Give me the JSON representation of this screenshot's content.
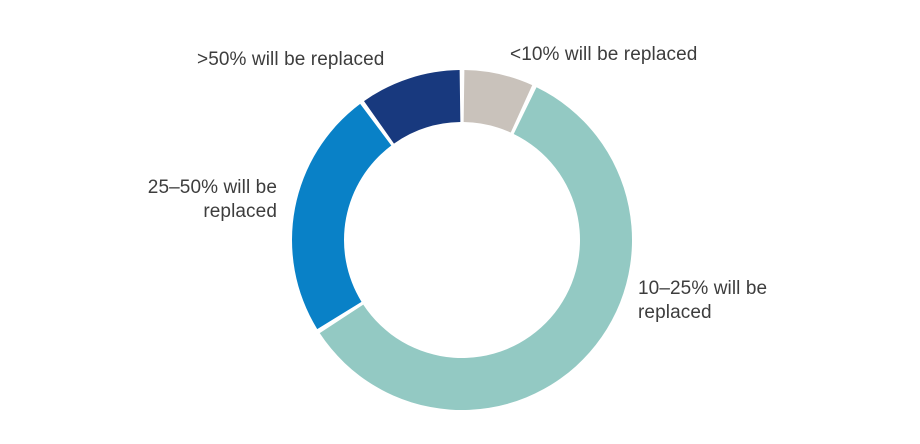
{
  "page": {
    "background_color": "#ffffff"
  },
  "chart_data": {
    "type": "pie",
    "variant": "donut",
    "title": "",
    "unit": "%",
    "direction": "clockwise",
    "start_angle_deg": 0,
    "donut_hole_ratio": 0.69,
    "gap_between_segments_deg": 1.6,
    "label_style": "callout",
    "label_color": "#3d3d3d",
    "background_color": "#ffffff",
    "segments": [
      {
        "label": "<10% will be replaced",
        "value": 7,
        "color": "#c9c2bb"
      },
      {
        "label": "10–25% will be replaced",
        "value": 59,
        "color": "#93c9c3"
      },
      {
        "label": "25–50% will be replaced",
        "value": 24,
        "color": "#0981c7"
      },
      {
        "label": ">50% will be replaced",
        "value": 10,
        "color": "#18397e"
      }
    ]
  }
}
